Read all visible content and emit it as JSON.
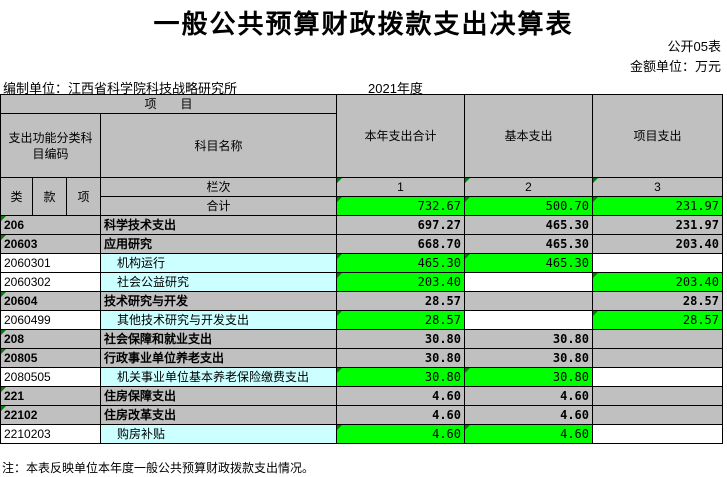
{
  "title": "一般公共预算财政拨款支出决算表",
  "form_code": "公开05表",
  "unit": "金额单位：万元",
  "org": "编制单位：江西省科学院科技战略研究所",
  "year": "2021年度",
  "header": {
    "item": "项　　目",
    "func_code": "支出功能分类科目编码",
    "subject_name": "科目名称",
    "total_col": "本年支出合计",
    "basic_col": "基本支出",
    "project_col": "项目支出",
    "lei": "类",
    "kuan": "款",
    "xiang": "项",
    "lanci": "栏次",
    "col1": "1",
    "col2": "2",
    "col3": "3",
    "sum_label": "合计",
    "sum_total": "732.67",
    "sum_basic": "500.70",
    "sum_project": "231.97"
  },
  "rows": [
    {
      "code": "206",
      "name": "科学技术支出",
      "total": "697.27",
      "basic": "465.30",
      "project": "231.97"
    },
    {
      "code": "20603",
      "name": "应用研究",
      "total": "668.70",
      "basic": "465.30",
      "project": "203.40"
    },
    {
      "code": "2060301",
      "name": "机构运行",
      "total": "465.30",
      "basic": "465.30",
      "project": ""
    },
    {
      "code": "2060302",
      "name": "社会公益研究",
      "total": "203.40",
      "basic": "",
      "project": "203.40"
    },
    {
      "code": "20604",
      "name": "技术研究与开发",
      "total": "28.57",
      "basic": "",
      "project": "28.57"
    },
    {
      "code": "2060499",
      "name": "其他技术研究与开发支出",
      "total": "28.57",
      "basic": "",
      "project": "28.57"
    },
    {
      "code": "208",
      "name": "社会保障和就业支出",
      "total": "30.80",
      "basic": "30.80",
      "project": ""
    },
    {
      "code": "20805",
      "name": "行政事业单位养老支出",
      "total": "30.80",
      "basic": "30.80",
      "project": ""
    },
    {
      "code": "2080505",
      "name": "机关事业单位基本养老保险缴费支出",
      "total": "30.80",
      "basic": "30.80",
      "project": ""
    },
    {
      "code": "221",
      "name": "住房保障支出",
      "total": "4.60",
      "basic": "4.60",
      "project": ""
    },
    {
      "code": "22102",
      "name": "住房改革支出",
      "total": "4.60",
      "basic": "4.60",
      "project": ""
    },
    {
      "code": "2210203",
      "name": "购房补贴",
      "total": "4.60",
      "basic": "4.60",
      "project": ""
    }
  ],
  "note": "注：本表反映单位本年度一般公共预算财政拨款支出情况。"
}
